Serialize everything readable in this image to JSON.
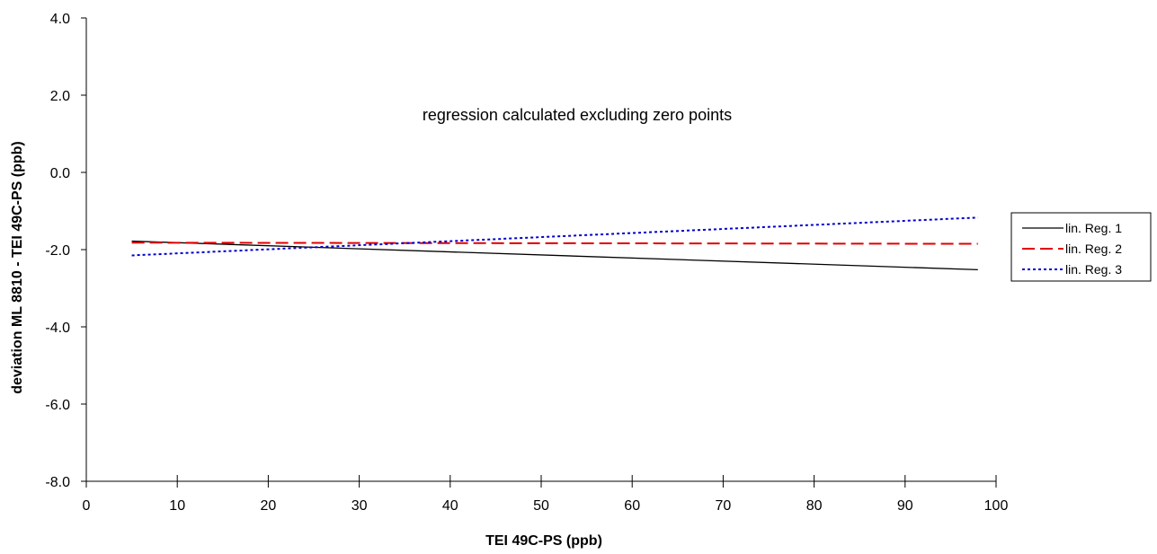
{
  "chart_data": {
    "type": "line",
    "title": "",
    "annotation": "regression calculated excluding zero points",
    "xlabel": "TEI 49C-PS (ppb)",
    "ylabel": "deviation ML 8810 - TEI 49C-PS (ppb)",
    "xlim": [
      0,
      100
    ],
    "ylim": [
      -8.0,
      4.0
    ],
    "x_ticks": [
      0,
      10,
      20,
      30,
      40,
      50,
      60,
      70,
      80,
      90,
      100
    ],
    "y_ticks": [
      4.0,
      2.0,
      0.0,
      -2.0,
      -4.0,
      -6.0,
      -8.0
    ],
    "x_tick_labels": [
      "0",
      "10",
      "20",
      "30",
      "40",
      "50",
      "60",
      "70",
      "80",
      "90",
      "100"
    ],
    "y_tick_labels": [
      "4.0",
      "2.0",
      "0.0",
      "-2.0",
      "-4.0",
      "-6.0",
      "-8.0"
    ],
    "grid": false,
    "legend_position": "right",
    "series": [
      {
        "name": "lin. Reg. 1",
        "color": "#000000",
        "style": "solid",
        "x": [
          5,
          98
        ],
        "y": [
          -1.78,
          -2.52
        ]
      },
      {
        "name": "lin. Reg. 2",
        "color": "#e00000",
        "style": "dashed",
        "x": [
          5,
          98
        ],
        "y": [
          -1.82,
          -1.85
        ]
      },
      {
        "name": "lin. Reg. 3",
        "color": "#0000cc",
        "style": "dotted",
        "x": [
          5,
          98
        ],
        "y": [
          -2.15,
          -1.17
        ]
      }
    ]
  }
}
